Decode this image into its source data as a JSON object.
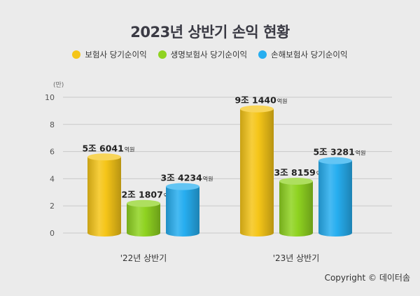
{
  "chart_data": {
    "type": "bar",
    "title": "2023년 상반기 손익 현황",
    "ylabel": "(만)",
    "ylim": [
      0,
      10
    ],
    "yticks": [
      0,
      2,
      4,
      6,
      8,
      10
    ],
    "grid": true,
    "legend_position": "top",
    "categories": [
      "'22년 상반기",
      "'23년 상반기"
    ],
    "series": [
      {
        "name": "보험사 당기순이익",
        "color": "#f5c518",
        "values": [
          5.6041,
          9.144
        ],
        "labels": [
          {
            "main": "5조 6041",
            "unit": "억원"
          },
          {
            "main": "9조 1440",
            "unit": "억원"
          }
        ]
      },
      {
        "name": "생명보험사 당기순이익",
        "color": "#8fd321",
        "values": [
          2.1807,
          3.8159
        ],
        "labels": [
          {
            "main": "2조 1807",
            "unit": "억원"
          },
          {
            "main": "3조 8159",
            "unit": "억원"
          }
        ]
      },
      {
        "name": "손해보험사 당기순이익",
        "color": "#27aef0",
        "values": [
          3.4234,
          5.3281
        ],
        "labels": [
          {
            "main": "3조 4234",
            "unit": "억원"
          },
          {
            "main": "5조 3281",
            "unit": "억원"
          }
        ]
      }
    ]
  },
  "copyright": "Copyright © 데이터솜"
}
